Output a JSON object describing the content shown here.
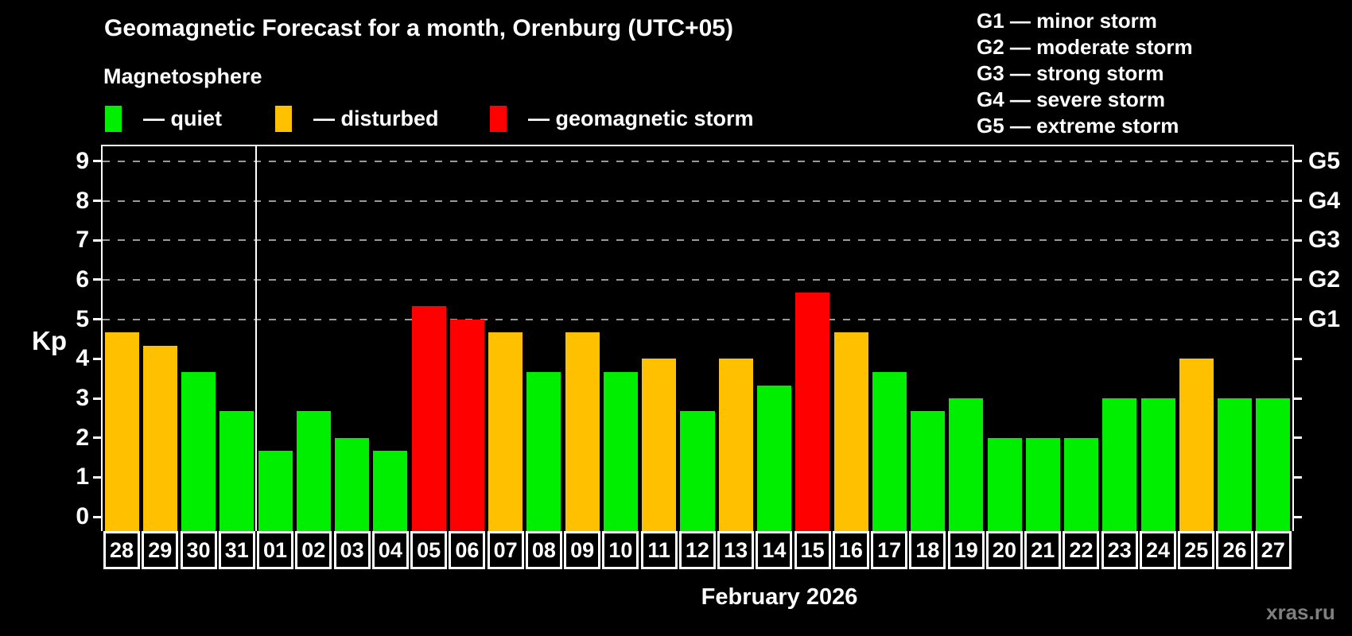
{
  "header": {
    "title": "Geomagnetic Forecast for a month, Orenburg (UTC+05)",
    "subtitle": "Magnetosphere"
  },
  "legend": {
    "items": [
      {
        "key": "quiet",
        "label": "— quiet"
      },
      {
        "key": "disturbed",
        "label": "— disturbed"
      },
      {
        "key": "storm",
        "label": "— geomagnetic storm"
      }
    ]
  },
  "storm_scale_legend": {
    "items": [
      "G1 — minor storm",
      "G2 — moderate storm",
      "G3 — strong storm",
      "G4 — severe storm",
      "G5 — extreme storm"
    ]
  },
  "colors": {
    "quiet": "#00ee00",
    "disturbed": "#ffc000",
    "storm": "#ff0000",
    "grid": "#9a9a9a",
    "axis": "#ffffff",
    "background": "#000000",
    "watermark": "#7f7f7f"
  },
  "chart_data": {
    "type": "bar",
    "title": "Geomagnetic Forecast for a month, Orenburg (UTC+05)",
    "subtitle": "Magnetosphere",
    "xlabel": "February 2026",
    "ylabel": "Kp",
    "ylim": [
      -0.36,
      9.38
    ],
    "yticks": [
      0,
      1,
      2,
      3,
      4,
      5,
      6,
      7,
      8,
      9
    ],
    "gridlines_at": [
      5,
      6,
      7,
      8,
      9
    ],
    "grid": "dashed",
    "right_axis_labels": {
      "5": "G1",
      "6": "G2",
      "7": "G3",
      "8": "G4",
      "9": "G5"
    },
    "legend_position": "top-left",
    "month_separator_after_index": 3,
    "categories": [
      "28",
      "29",
      "30",
      "31",
      "01",
      "02",
      "03",
      "04",
      "05",
      "06",
      "07",
      "08",
      "09",
      "10",
      "11",
      "12",
      "13",
      "14",
      "15",
      "16",
      "17",
      "18",
      "19",
      "20",
      "21",
      "22",
      "23",
      "24",
      "25",
      "26",
      "27"
    ],
    "values": [
      4.67,
      4.33,
      3.67,
      2.67,
      1.67,
      2.67,
      2.0,
      1.67,
      5.33,
      5.0,
      4.67,
      3.67,
      4.67,
      3.67,
      4.0,
      2.67,
      4.0,
      3.33,
      5.67,
      4.67,
      3.67,
      2.67,
      3.0,
      2.0,
      2.0,
      2.0,
      3.0,
      3.0,
      4.0,
      3.0,
      3.0
    ],
    "statuses": [
      "disturbed",
      "disturbed",
      "quiet",
      "quiet",
      "quiet",
      "quiet",
      "quiet",
      "quiet",
      "storm",
      "storm",
      "disturbed",
      "quiet",
      "disturbed",
      "quiet",
      "disturbed",
      "quiet",
      "disturbed",
      "quiet",
      "storm",
      "disturbed",
      "quiet",
      "quiet",
      "quiet",
      "quiet",
      "quiet",
      "quiet",
      "quiet",
      "quiet",
      "disturbed",
      "quiet",
      "quiet"
    ]
  },
  "footer": {
    "month_label": "February 2026",
    "watermark": "xras.ru"
  }
}
